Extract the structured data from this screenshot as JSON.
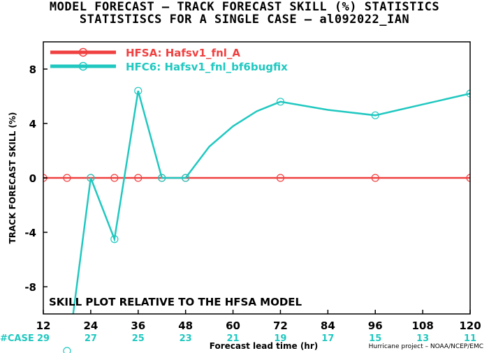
{
  "header": {
    "title_line1": "MODEL FORECAST – TRACK FORECAST SKILL (%) STATISTICS",
    "title_line2": "STATISTISCS FOR A SINGLE CASE – al092022_IAN"
  },
  "credit": "Hurricane project – NOAA/NCEP/EMC",
  "colors": {
    "hfsa": "#f04040",
    "hfc6": "#20c8c0",
    "axis": "#000000",
    "case": "#20c8c0"
  },
  "chart_data": {
    "type": "line",
    "title": "MODEL FORECAST – TRACK FORECAST SKILL (%) STATISTICS",
    "subtitle": "STATISTISCS FOR A SINGLE CASE – al092022_IAN",
    "xlabel": "Forecast lead time (hr)",
    "ylabel": "TRACK FORECAST SKILL (%)",
    "xlim": [
      12,
      120
    ],
    "ylim": [
      -10,
      10
    ],
    "x_ticks": [
      12,
      24,
      36,
      48,
      60,
      72,
      84,
      96,
      108,
      120
    ],
    "y_ticks": [
      8,
      4,
      0,
      -4,
      -8
    ],
    "annotation": "SKILL PLOT RELATIVE TO THE HFSA MODEL",
    "legend_position": "top-left",
    "case_label": "#CASE",
    "case_counts": [
      "29",
      "27",
      "25",
      "23",
      "21",
      "19",
      "17",
      "15",
      "13",
      "11"
    ],
    "series": [
      {
        "name": "HFSA: Hafsv1_fnl_A",
        "color": "#f04040",
        "x": [
          12,
          18,
          24,
          30,
          36,
          42,
          48,
          72,
          96,
          120
        ],
        "y": [
          0,
          0,
          0,
          0,
          0,
          0,
          0,
          0,
          0,
          0
        ],
        "markers": [
          12,
          18,
          24,
          30,
          36,
          42,
          48,
          72,
          96,
          120
        ]
      },
      {
        "name": "HFC6: Hafsv1_fnl_bf6bugfix",
        "color": "#20c8c0",
        "x": [
          18,
          24,
          30,
          36,
          42,
          48,
          54,
          60,
          66,
          72,
          78,
          84,
          90,
          96,
          102,
          108,
          114,
          120
        ],
        "y": [
          -13.5,
          0,
          -4.5,
          6.4,
          0,
          0,
          2.3,
          3.8,
          4.9,
          5.6,
          5.3,
          5.0,
          4.8,
          4.6,
          5.0,
          5.4,
          5.8,
          6.2
        ],
        "markers": [
          24,
          30,
          36,
          42,
          48,
          72,
          96,
          120
        ]
      }
    ]
  }
}
